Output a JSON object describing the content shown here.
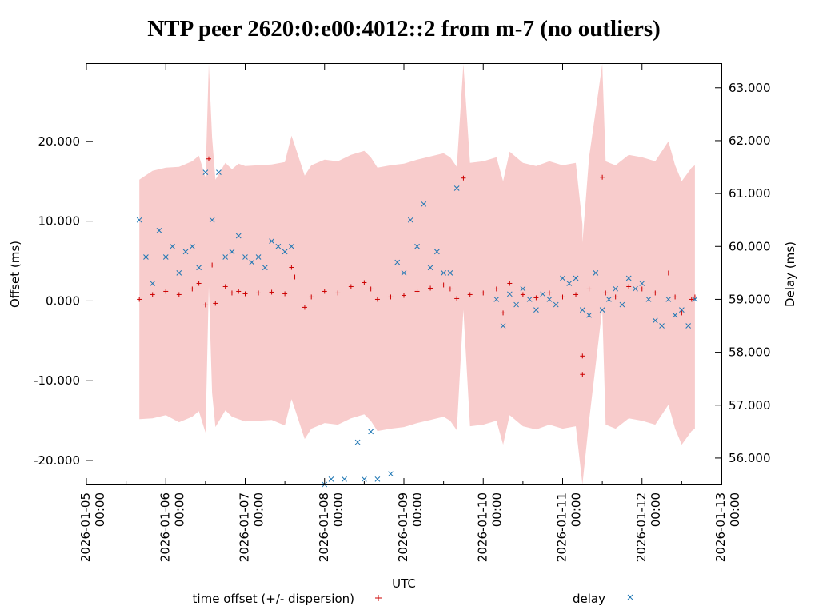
{
  "chart_data": {
    "type": "scatter",
    "title": "NTP peer 2620:0:e00:4012::2 from m-7 (no outliers)",
    "xlabel": "UTC",
    "ylabel": "Offset (ms)",
    "y2label": "Delay (ms)",
    "xlim": [
      "2026-01-05 00:00",
      "2026-01-13 00:00"
    ],
    "ylim": [
      -23.0,
      29.7
    ],
    "y2lim": [
      55.5,
      63.45
    ],
    "grid": false,
    "legend_position": "bottom",
    "x_ticks": [
      {
        "date": "2026-01-05",
        "time": "00:00"
      },
      {
        "date": "2026-01-06",
        "time": "00:00"
      },
      {
        "date": "2026-01-07",
        "time": "00:00"
      },
      {
        "date": "2026-01-08",
        "time": "00:00"
      },
      {
        "date": "2026-01-09",
        "time": "00:00"
      },
      {
        "date": "2026-01-10",
        "time": "00:00"
      },
      {
        "date": "2026-01-11",
        "time": "00:00"
      },
      {
        "date": "2026-01-12",
        "time": "00:00"
      },
      {
        "date": "2026-01-13",
        "time": "00:00"
      }
    ],
    "y_ticks": [
      {
        "value": -20,
        "label": "-20.000"
      },
      {
        "value": -10,
        "label": "-10.000"
      },
      {
        "value": 0,
        "label": "0.000"
      },
      {
        "value": 10,
        "label": "10.000"
      },
      {
        "value": 20,
        "label": "20.000"
      }
    ],
    "y2_ticks": [
      {
        "value": 56,
        "label": "56.000"
      },
      {
        "value": 57,
        "label": "57.000"
      },
      {
        "value": 58,
        "label": "58.000"
      },
      {
        "value": 59,
        "label": "59.000"
      },
      {
        "value": 60,
        "label": "60.000"
      },
      {
        "value": 61,
        "label": "61.000"
      },
      {
        "value": 62,
        "label": "62.000"
      },
      {
        "value": 63,
        "label": "63.000"
      }
    ],
    "series": [
      {
        "name": "time offset (+/- dispersion)",
        "axis": "y",
        "marker": "+",
        "color": "#cc0000",
        "band_color": "#f8cccc",
        "x": [
          "2026-01-05 16:00",
          "2026-01-05 20:00",
          "2026-01-06 00:00",
          "2026-01-06 04:00",
          "2026-01-06 08:00",
          "2026-01-06 10:00",
          "2026-01-06 12:00",
          "2026-01-06 13:00",
          "2026-01-06 14:00",
          "2026-01-06 15:00",
          "2026-01-06 18:00",
          "2026-01-06 20:00",
          "2026-01-06 22:00",
          "2026-01-07 00:00",
          "2026-01-07 04:00",
          "2026-01-07 08:00",
          "2026-01-07 12:00",
          "2026-01-07 14:00",
          "2026-01-07 15:00",
          "2026-01-07 18:00",
          "2026-01-07 20:00",
          "2026-01-08 00:00",
          "2026-01-08 04:00",
          "2026-01-08 08:00",
          "2026-01-08 12:00",
          "2026-01-08 14:00",
          "2026-01-08 16:00",
          "2026-01-08 20:00",
          "2026-01-09 00:00",
          "2026-01-09 04:00",
          "2026-01-09 08:00",
          "2026-01-09 12:00",
          "2026-01-09 14:00",
          "2026-01-09 16:00",
          "2026-01-09 18:00",
          "2026-01-09 20:00",
          "2026-01-10 00:00",
          "2026-01-10 04:00",
          "2026-01-10 06:00",
          "2026-01-10 08:00",
          "2026-01-10 12:00",
          "2026-01-10 16:00",
          "2026-01-10 20:00",
          "2026-01-11 00:00",
          "2026-01-11 04:00",
          "2026-01-11 06:00",
          "2026-01-11 06:00",
          "2026-01-11 08:00",
          "2026-01-11 12:00",
          "2026-01-11 13:00",
          "2026-01-11 16:00",
          "2026-01-11 20:00",
          "2026-01-12 00:00",
          "2026-01-12 04:00",
          "2026-01-12 08:00",
          "2026-01-12 10:00",
          "2026-01-12 12:00",
          "2026-01-12 15:00",
          "2026-01-12 16:00"
        ],
        "values": [
          0.2,
          0.8,
          1.2,
          0.8,
          1.5,
          2.2,
          -0.5,
          17.8,
          4.5,
          -0.3,
          1.8,
          1.0,
          1.2,
          0.9,
          1.0,
          1.1,
          0.9,
          4.2,
          3.0,
          -0.8,
          0.5,
          1.2,
          1.0,
          1.8,
          2.3,
          1.5,
          0.2,
          0.5,
          0.7,
          1.2,
          1.6,
          2.0,
          1.5,
          0.3,
          15.4,
          0.8,
          1.0,
          1.5,
          -1.5,
          2.2,
          0.8,
          0.4,
          1.0,
          0.5,
          0.8,
          -6.9,
          -9.2,
          1.5,
          15.5,
          1.0,
          0.5,
          1.8,
          1.5,
          1.0,
          3.5,
          0.5,
          -1.5,
          0.2,
          0.5
        ],
        "dispersion": [
          15.0,
          15.5,
          15.5,
          16.0,
          16.0,
          16.0,
          16.0,
          16.0,
          16.0,
          15.5,
          15.5,
          15.5,
          16.0,
          16.0,
          16.0,
          16.0,
          16.5,
          16.5,
          16.5,
          16.5,
          16.5,
          16.5,
          16.5,
          16.5,
          16.5,
          16.5,
          16.5,
          16.5,
          16.5,
          16.5,
          16.5,
          16.5,
          16.5,
          16.5,
          16.5,
          16.5,
          16.5,
          16.5,
          16.5,
          16.5,
          16.5,
          16.5,
          16.5,
          16.5,
          16.5,
          16.5,
          16.5,
          16.5,
          16.5,
          16.5,
          16.5,
          16.5,
          16.5,
          16.5,
          16.5,
          16.5,
          16.5,
          16.5,
          16.5
        ]
      },
      {
        "name": "delay",
        "axis": "y2",
        "marker": "x",
        "color": "#1f77b4",
        "x": [
          "2026-01-05 16:00",
          "2026-01-05 18:00",
          "2026-01-05 20:00",
          "2026-01-05 22:00",
          "2026-01-06 00:00",
          "2026-01-06 02:00",
          "2026-01-06 04:00",
          "2026-01-06 06:00",
          "2026-01-06 08:00",
          "2026-01-06 10:00",
          "2026-01-06 12:00",
          "2026-01-06 14:00",
          "2026-01-06 16:00",
          "2026-01-06 18:00",
          "2026-01-06 20:00",
          "2026-01-06 22:00",
          "2026-01-07 00:00",
          "2026-01-07 02:00",
          "2026-01-07 04:00",
          "2026-01-07 06:00",
          "2026-01-07 08:00",
          "2026-01-07 10:00",
          "2026-01-07 12:00",
          "2026-01-07 14:00",
          "2026-01-08 00:00",
          "2026-01-08 02:00",
          "2026-01-08 06:00",
          "2026-01-08 10:00",
          "2026-01-08 12:00",
          "2026-01-08 14:00",
          "2026-01-08 16:00",
          "2026-01-08 18:00",
          "2026-01-08 20:00",
          "2026-01-08 22:00",
          "2026-01-09 00:00",
          "2026-01-09 02:00",
          "2026-01-09 04:00",
          "2026-01-09 06:00",
          "2026-01-09 08:00",
          "2026-01-09 10:00",
          "2026-01-09 12:00",
          "2026-01-09 14:00",
          "2026-01-09 16:00",
          "2026-01-10 04:00",
          "2026-01-10 06:00",
          "2026-01-10 08:00",
          "2026-01-10 10:00",
          "2026-01-10 12:00",
          "2026-01-10 14:00",
          "2026-01-10 16:00",
          "2026-01-10 18:00",
          "2026-01-10 20:00",
          "2026-01-10 22:00",
          "2026-01-11 00:00",
          "2026-01-11 02:00",
          "2026-01-11 04:00",
          "2026-01-11 06:00",
          "2026-01-11 08:00",
          "2026-01-11 10:00",
          "2026-01-11 12:00",
          "2026-01-11 14:00",
          "2026-01-11 16:00",
          "2026-01-11 18:00",
          "2026-01-11 20:00",
          "2026-01-11 22:00",
          "2026-01-12 00:00",
          "2026-01-12 02:00",
          "2026-01-12 04:00",
          "2026-01-12 06:00",
          "2026-01-12 08:00",
          "2026-01-12 10:00",
          "2026-01-12 12:00",
          "2026-01-12 14:00",
          "2026-01-12 16:00"
        ],
        "values": [
          60.5,
          59.8,
          59.3,
          60.3,
          59.8,
          60.0,
          59.5,
          59.9,
          60.0,
          59.6,
          61.4,
          60.5,
          61.4,
          59.8,
          59.9,
          60.2,
          59.8,
          59.7,
          59.8,
          59.6,
          60.1,
          60.0,
          59.9,
          60.0,
          55.5,
          55.6,
          55.6,
          56.3,
          55.6,
          56.5,
          55.6,
          55.4,
          55.7,
          59.7,
          59.5,
          60.5,
          60.0,
          60.8,
          59.6,
          59.9,
          59.5,
          59.5,
          61.1,
          59.0,
          58.5,
          59.1,
          58.9,
          59.2,
          59.0,
          58.8,
          59.1,
          59.0,
          58.9,
          59.4,
          59.3,
          59.4,
          58.8,
          58.7,
          59.5,
          58.8,
          59.0,
          59.2,
          58.9,
          59.4,
          59.2,
          59.3,
          59.0,
          58.6,
          58.5,
          59.0,
          58.7,
          58.8,
          58.5,
          59.0
        ]
      }
    ]
  }
}
